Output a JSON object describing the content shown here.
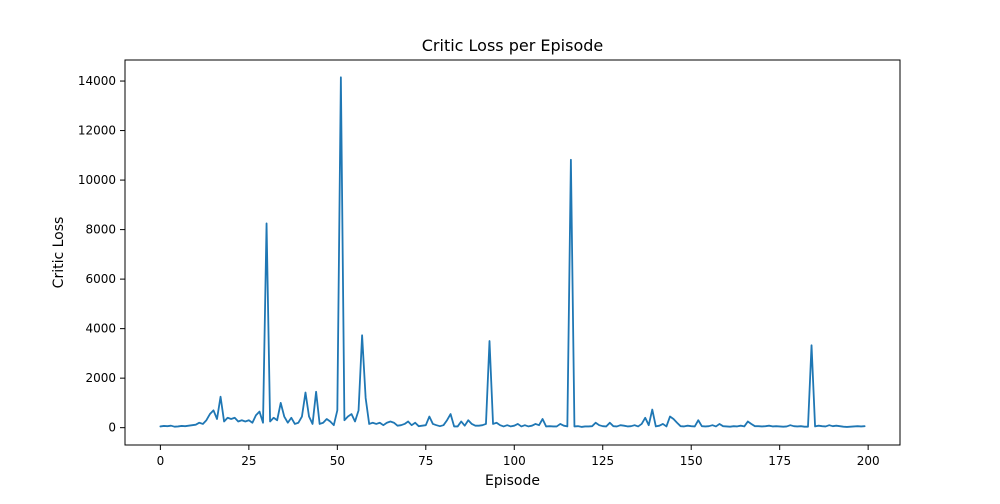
{
  "chart_data": {
    "type": "line",
    "title": "Critic Loss per Episode",
    "xlabel": "Episode",
    "ylabel": "Critic Loss",
    "xlim": [
      -10,
      209
    ],
    "ylim": [
      -700,
      14850
    ],
    "xticks": [
      0,
      25,
      50,
      75,
      100,
      125,
      150,
      175,
      200
    ],
    "yticks": [
      0,
      2000,
      4000,
      6000,
      8000,
      10000,
      12000,
      14000
    ],
    "grid": false,
    "legend": "none",
    "line_color": "#1f77b4",
    "series": [
      {
        "x": [
          0,
          1,
          2,
          3,
          4,
          5,
          6,
          7,
          8,
          9,
          10,
          11,
          12,
          13,
          14,
          15,
          16,
          17,
          18,
          19,
          20,
          21,
          22,
          23,
          24,
          25,
          26,
          27,
          28,
          29,
          30,
          31,
          32,
          33,
          34,
          35,
          36,
          37,
          38,
          39,
          40,
          41,
          42,
          43,
          44,
          45,
          46,
          47,
          48,
          49,
          50,
          51,
          52,
          53,
          54,
          55,
          56,
          57,
          58,
          59,
          60,
          61,
          62,
          63,
          64,
          65,
          66,
          67,
          68,
          69,
          70,
          71,
          72,
          73,
          74,
          75,
          76,
          77,
          78,
          79,
          80,
          81,
          82,
          83,
          84,
          85,
          86,
          87,
          88,
          89,
          90,
          91,
          92,
          93,
          94,
          95,
          96,
          97,
          98,
          99,
          100,
          101,
          102,
          103,
          104,
          105,
          106,
          107,
          108,
          109,
          110,
          111,
          112,
          113,
          114,
          115,
          116,
          117,
          118,
          119,
          120,
          121,
          122,
          123,
          124,
          125,
          126,
          127,
          128,
          129,
          130,
          131,
          132,
          133,
          134,
          135,
          136,
          137,
          138,
          139,
          140,
          141,
          142,
          143,
          144,
          145,
          146,
          147,
          148,
          149,
          150,
          151,
          152,
          153,
          154,
          155,
          156,
          157,
          158,
          159,
          160,
          161,
          162,
          163,
          164,
          165,
          166,
          167,
          168,
          169,
          170,
          171,
          172,
          173,
          174,
          175,
          176,
          177,
          178,
          179,
          180,
          181,
          182,
          183,
          184,
          185,
          186,
          187,
          188,
          189,
          190,
          191,
          192,
          193,
          194,
          195,
          196,
          197,
          198,
          199
        ],
        "y": [
          50,
          70,
          60,
          80,
          40,
          50,
          70,
          60,
          80,
          100,
          120,
          200,
          150,
          300,
          550,
          700,
          350,
          1250,
          250,
          400,
          350,
          400,
          250,
          300,
          250,
          300,
          200,
          500,
          650,
          200,
          8250,
          250,
          400,
          300,
          1000,
          450,
          200,
          400,
          150,
          200,
          450,
          1420,
          450,
          150,
          1450,
          150,
          200,
          350,
          250,
          100,
          700,
          14150,
          300,
          450,
          550,
          250,
          700,
          3730,
          1200,
          150,
          200,
          150,
          200,
          100,
          200,
          250,
          200,
          80,
          100,
          150,
          250,
          100,
          200,
          60,
          80,
          100,
          450,
          150,
          100,
          60,
          100,
          300,
          550,
          50,
          50,
          250,
          80,
          300,
          150,
          80,
          80,
          100,
          150,
          3500,
          150,
          200,
          100,
          50,
          100,
          50,
          80,
          150,
          50,
          100,
          50,
          80,
          150,
          100,
          350,
          50,
          60,
          50,
          50,
          150,
          80,
          50,
          10820,
          50,
          60,
          30,
          50,
          50,
          60,
          200,
          100,
          60,
          50,
          200,
          60,
          50,
          100,
          80,
          50,
          60,
          100,
          50,
          150,
          400,
          100,
          730,
          50,
          80,
          150,
          50,
          450,
          350,
          200,
          60,
          50,
          80,
          60,
          50,
          300,
          60,
          50,
          60,
          100,
          50,
          150,
          60,
          50,
          40,
          60,
          50,
          80,
          50,
          250,
          150,
          60,
          60,
          50,
          60,
          80,
          50,
          60,
          50,
          40,
          50,
          100,
          60,
          50,
          60,
          40,
          40,
          3330,
          50,
          80,
          60,
          50,
          100,
          60,
          80,
          60,
          40,
          30,
          40,
          50,
          60,
          50,
          60
        ]
      }
    ]
  }
}
